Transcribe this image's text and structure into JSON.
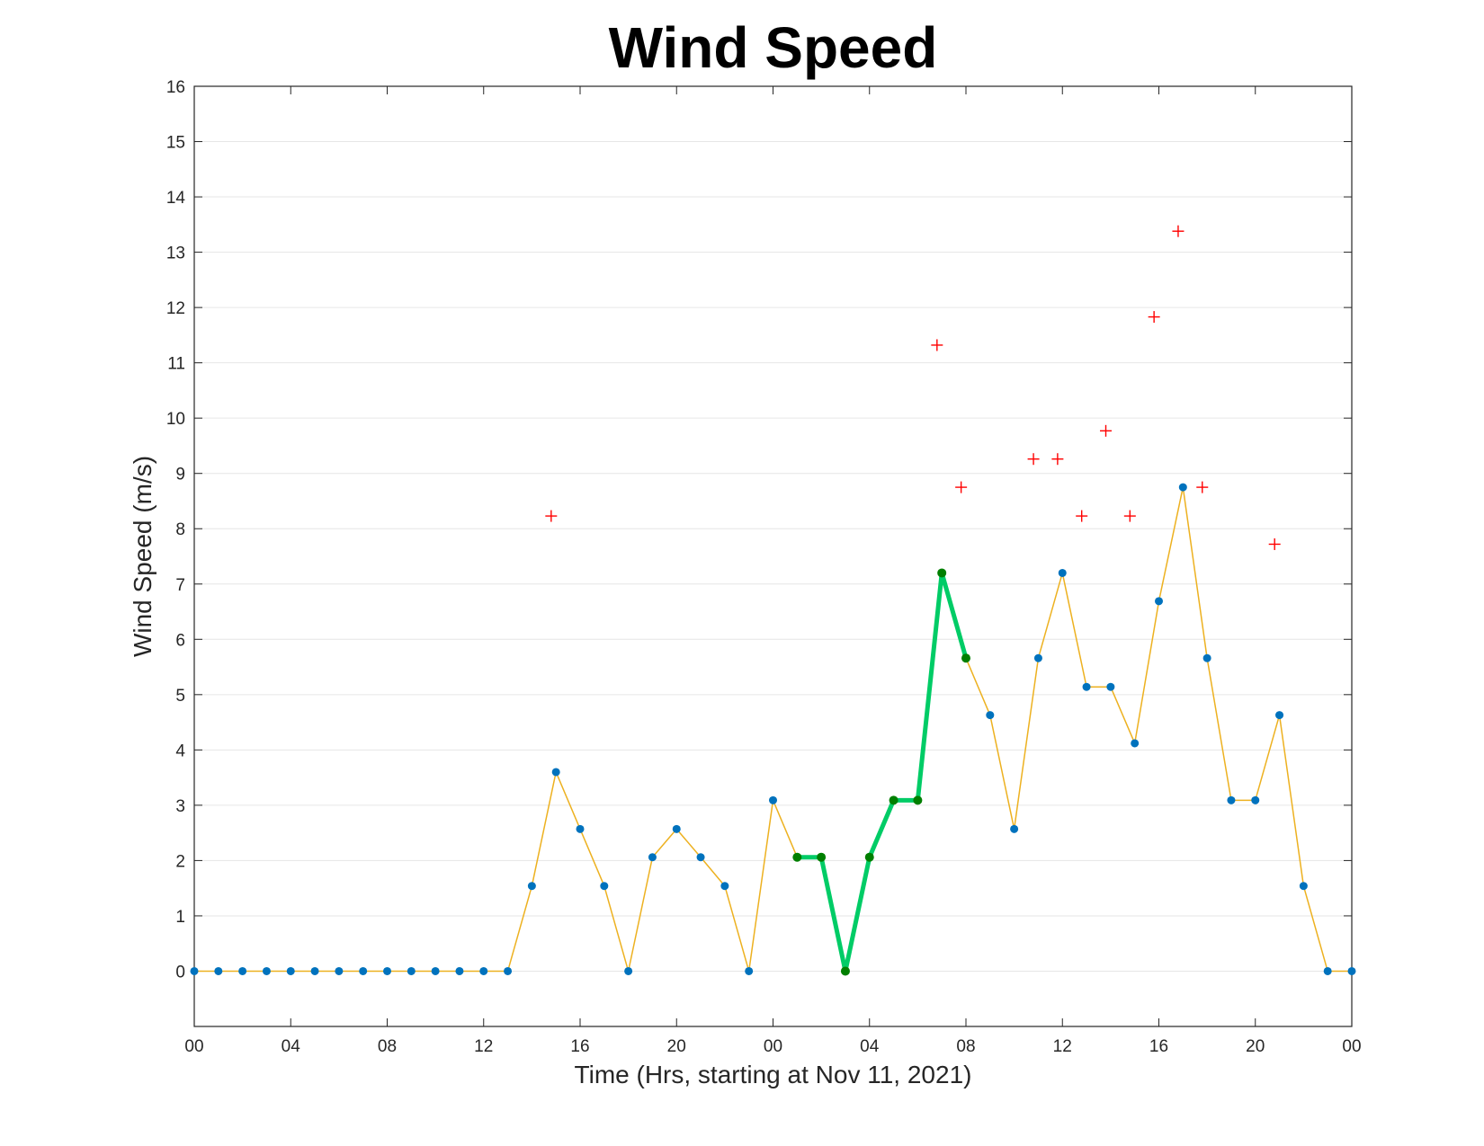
{
  "chart_data": {
    "type": "line",
    "title": "Wind Speed",
    "xlabel": "Time (Hrs, starting at Nov 11, 2021)",
    "ylabel": "Wind Speed (m/s)",
    "xlim": [
      0,
      48
    ],
    "ylim": [
      -1,
      16
    ],
    "grid": "horizontal",
    "yticks": [
      0,
      1,
      2,
      3,
      4,
      5,
      6,
      7,
      8,
      9,
      10,
      11,
      12,
      13,
      14,
      15,
      16
    ],
    "xticks": [
      {
        "x": 0,
        "label": "00"
      },
      {
        "x": 4,
        "label": "04"
      },
      {
        "x": 8,
        "label": "08"
      },
      {
        "x": 12,
        "label": "12"
      },
      {
        "x": 16,
        "label": "16"
      },
      {
        "x": 20,
        "label": "20"
      },
      {
        "x": 24,
        "label": "00"
      },
      {
        "x": 28,
        "label": "04"
      },
      {
        "x": 32,
        "label": "08"
      },
      {
        "x": 36,
        "label": "12"
      },
      {
        "x": 40,
        "label": "16"
      },
      {
        "x": 44,
        "label": "20"
      },
      {
        "x": 48,
        "label": "00"
      }
    ],
    "colors": {
      "speed_line": "#EDB120",
      "speed_marker": "#0072BD",
      "highlight_line": "#00CC66",
      "highlight_marker": "#007F00",
      "gust_marker": "#FF0000"
    },
    "series": [
      {
        "kind": "speed",
        "x": [
          0,
          1,
          2,
          3,
          4,
          5,
          6,
          7,
          8,
          9,
          10,
          11,
          12,
          13,
          14,
          15,
          16,
          17,
          18,
          19,
          20,
          21,
          22,
          23,
          24,
          25,
          26,
          27,
          28,
          29,
          30,
          31,
          32,
          33,
          34,
          35,
          36,
          37,
          38,
          39,
          40,
          41,
          42,
          43,
          44,
          45,
          46,
          47,
          48
        ],
        "y": [
          0,
          0,
          0,
          0,
          0,
          0,
          0,
          0,
          0,
          0,
          0,
          0,
          0,
          0,
          1.54,
          3.6,
          2.57,
          1.54,
          0,
          2.06,
          2.57,
          2.06,
          1.54,
          0,
          3.09,
          2.06,
          2.06,
          0,
          2.06,
          3.09,
          3.09,
          7.2,
          5.66,
          4.63,
          2.57,
          5.66,
          7.2,
          5.14,
          5.14,
          4.12,
          6.69,
          8.75,
          5.66,
          3.09,
          3.09,
          4.63,
          1.54,
          0,
          0
        ]
      },
      {
        "kind": "highlight",
        "x": [
          25,
          26,
          27,
          28,
          29,
          30,
          31,
          32
        ],
        "y": [
          2.06,
          2.06,
          0,
          2.06,
          3.09,
          3.09,
          7.2,
          5.66
        ]
      },
      {
        "kind": "gust",
        "x": [
          14.8,
          30.8,
          31.8,
          34.8,
          35.8,
          36.8,
          37.8,
          38.8,
          39.8,
          40.8,
          41.8,
          44.8
        ],
        "y": [
          8.23,
          11.32,
          8.75,
          9.26,
          9.26,
          8.23,
          9.77,
          8.23,
          11.83,
          13.38,
          8.75,
          7.72
        ]
      }
    ]
  }
}
